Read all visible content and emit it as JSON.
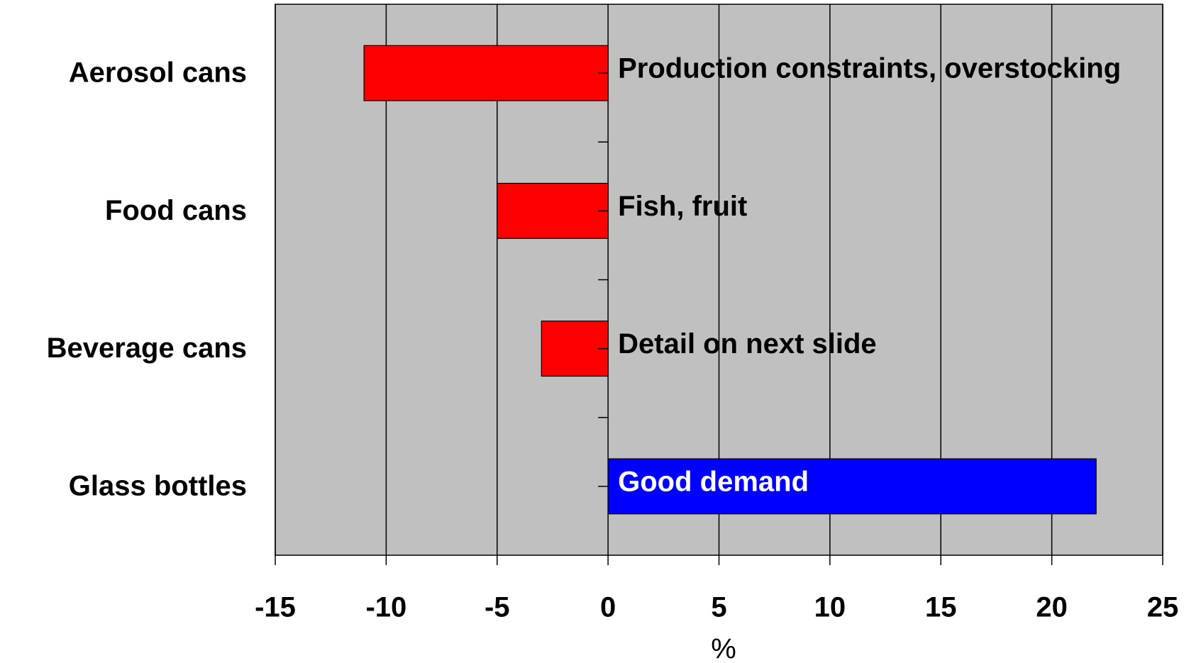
{
  "chart_data": {
    "type": "hbar",
    "categories": [
      "Aerosol cans",
      "Food cans",
      "Beverage cans",
      "Glass bottles"
    ],
    "values": [
      -11,
      -5,
      -3,
      22
    ],
    "colors": [
      "#ff0000",
      "#ff0000",
      "#ff0000",
      "#0000ff"
    ],
    "annotations": [
      "Production constraints, overstocking",
      "Fish, fruit",
      "Detail on next slide",
      "Good demand"
    ],
    "annotation_colors": [
      "#000000",
      "#000000",
      "#000000",
      "#ffffff"
    ],
    "xlabel": "%",
    "xlim": [
      -15,
      25
    ],
    "xticks": [
      -15,
      -10,
      -5,
      0,
      5,
      10,
      15,
      20,
      25
    ],
    "grid": true,
    "background": "#c0c0c0"
  }
}
